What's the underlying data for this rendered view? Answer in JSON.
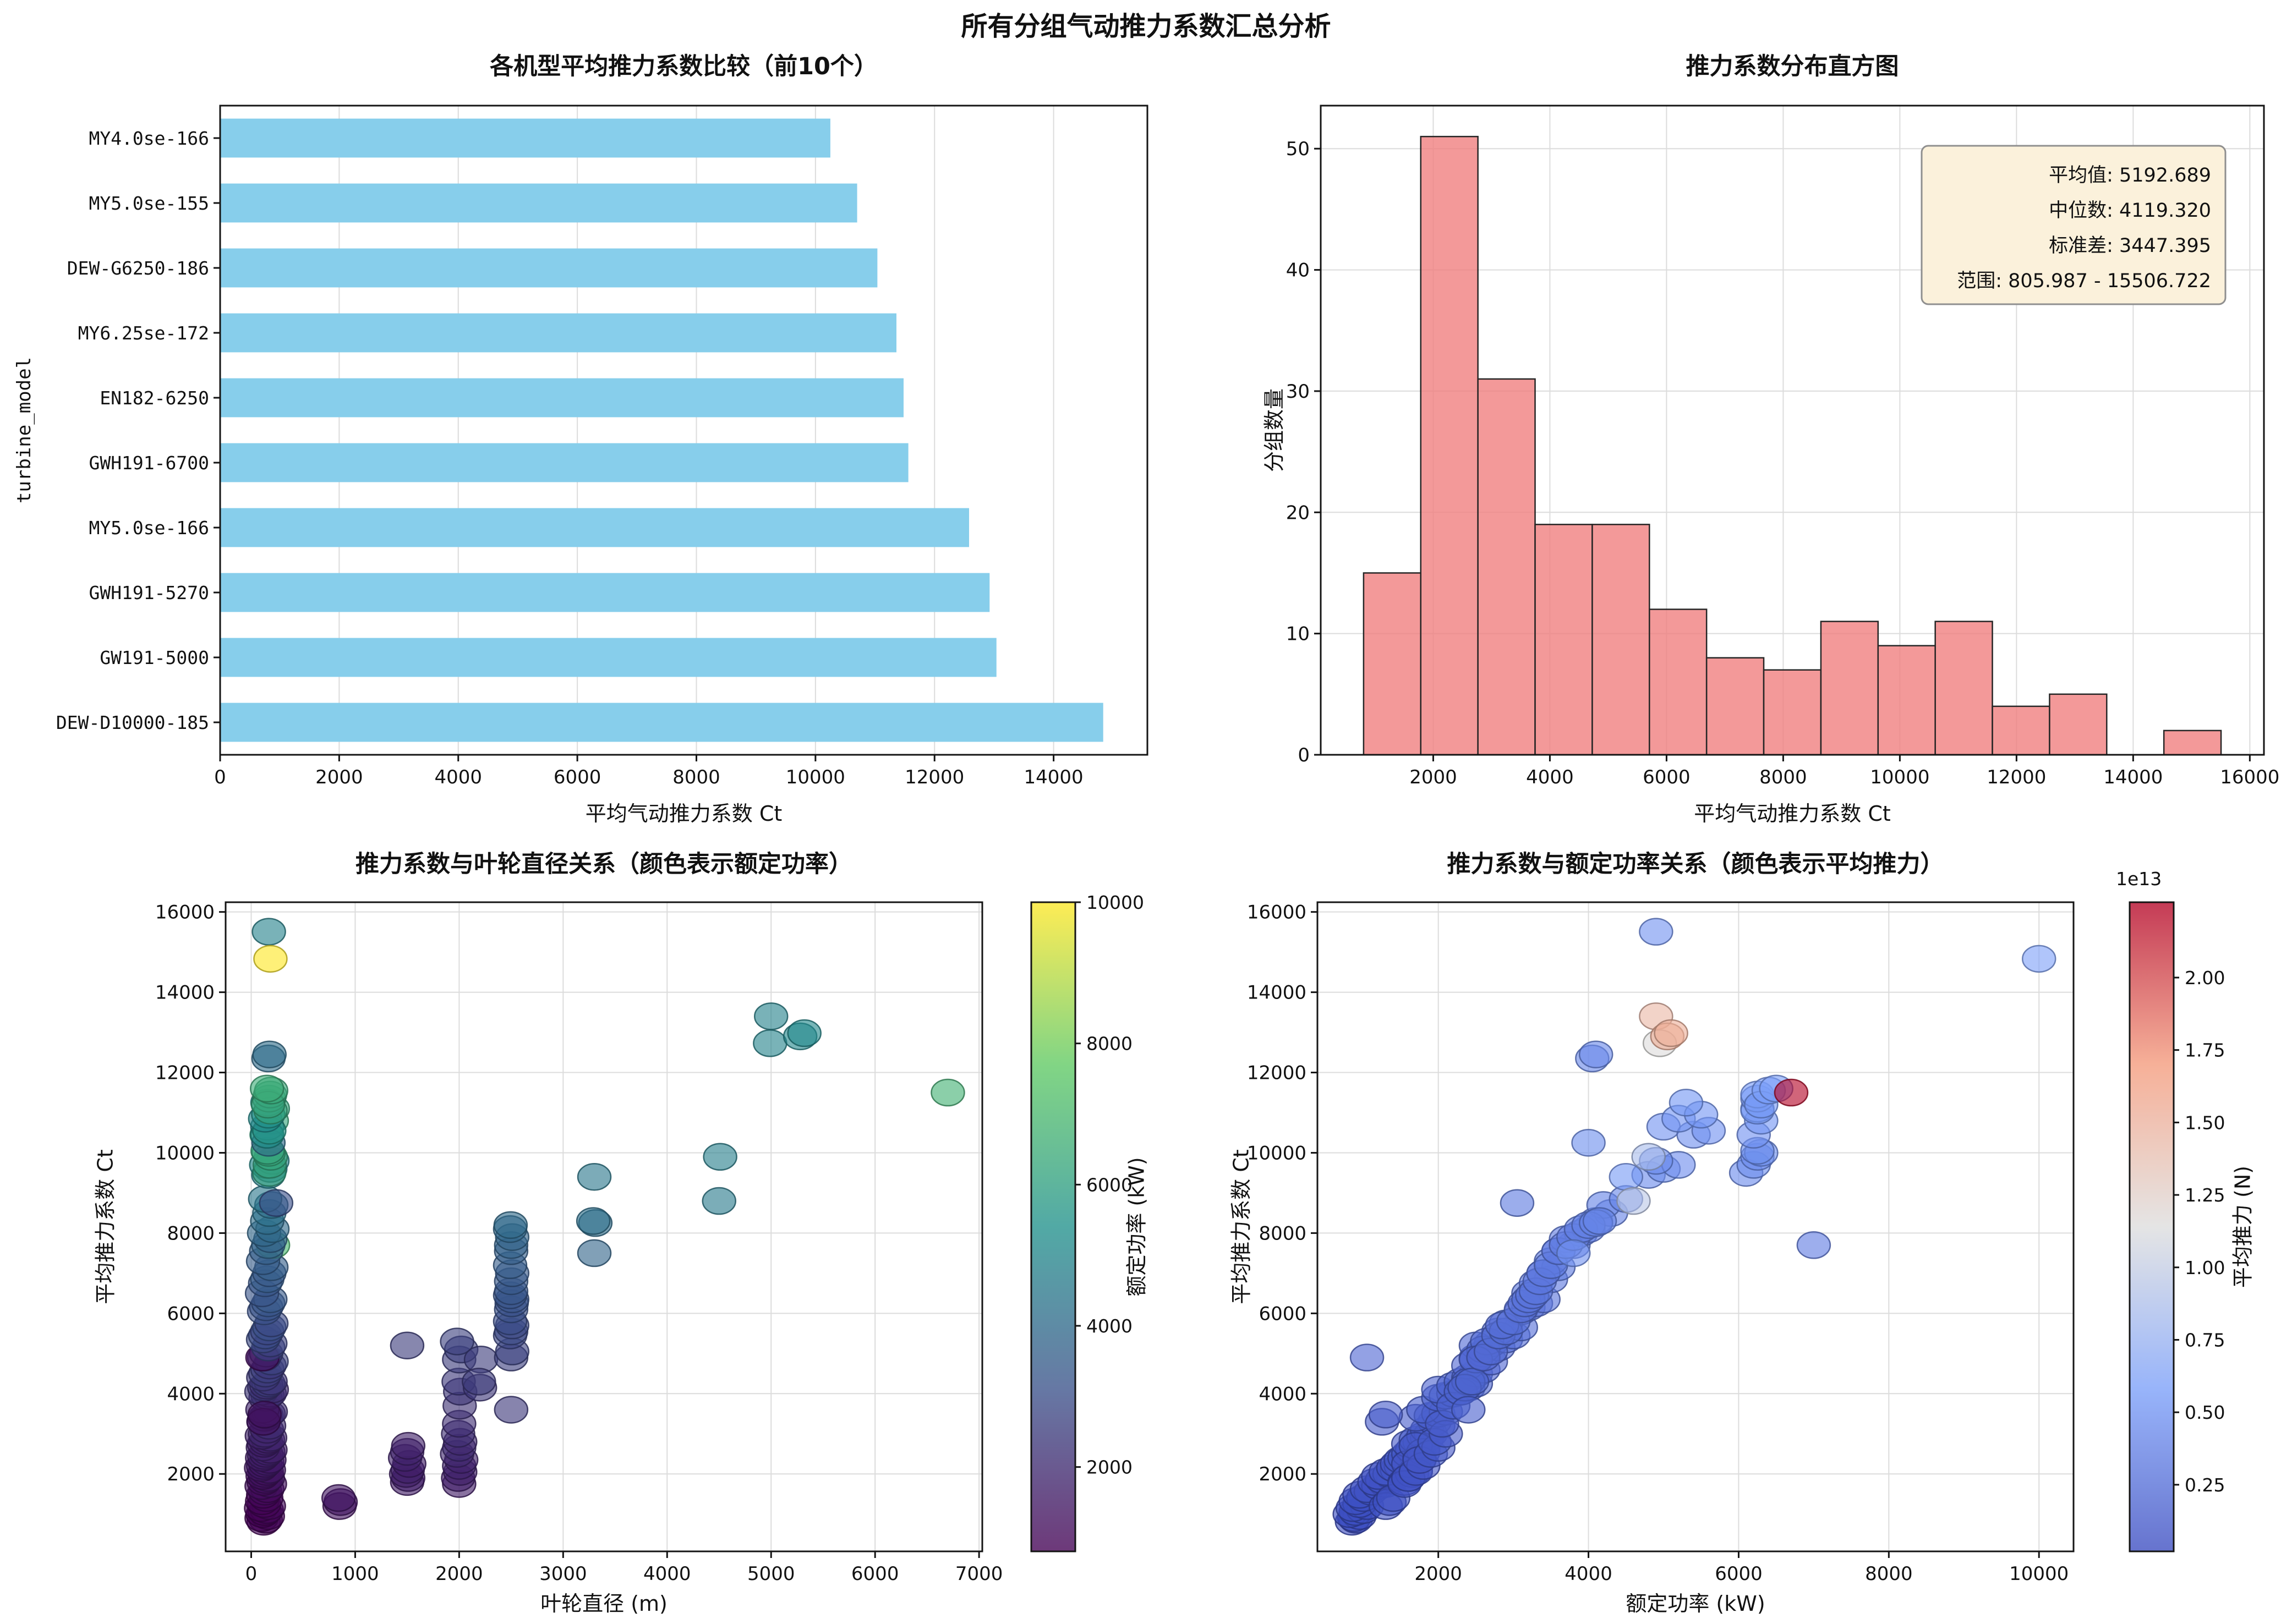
{
  "suptitle": "所有分组气动推力系数汇总分析",
  "record_fields": [
    "rotor_diameter_m",
    "rated_power_kw",
    "mean_ct",
    "mean_thrust_1e13_N"
  ],
  "chart_data": [
    {
      "type": "bar",
      "orientation": "horizontal",
      "title": "各机型平均推力系数比较（前10个）",
      "xlabel": "平均气动推力系数 Ct",
      "ylabel": "turbine_model",
      "categories": [
        "MY4.0se-166",
        "MY5.0se-155",
        "DEW-G6250-186",
        "MY6.25se-172",
        "EN182-6250",
        "GWH191-6700",
        "MY5.0se-166",
        "GWH191-5270",
        "GW191-5000",
        "DEW-D10000-185"
      ],
      "values": [
        10250,
        10700,
        11040,
        11360,
        11480,
        11560,
        12580,
        12925,
        13040,
        14833
      ],
      "bar_color": "#87CEEB",
      "xticks": [
        0,
        2000,
        4000,
        6000,
        8000,
        10000,
        12000,
        14000
      ],
      "xlim": [
        0,
        15575
      ]
    },
    {
      "type": "histogram",
      "title": "推力系数分布直方图",
      "xlabel": "平均气动推力系数 Ct",
      "ylabel": "分组数量",
      "bin_start": 805.987,
      "bin_width": 980.049,
      "counts": [
        15,
        51,
        31,
        19,
        19,
        12,
        8,
        7,
        11,
        9,
        11,
        4,
        5,
        0,
        2
      ],
      "bar_color": "#F08080",
      "edge_color": "#262626",
      "xticks": [
        2000,
        4000,
        6000,
        8000,
        10000,
        12000,
        14000,
        16000
      ],
      "yticks": [
        0,
        10,
        20,
        30,
        40,
        50
      ],
      "xlim": [
        71,
        16242
      ],
      "ylim": [
        0,
        53.55
      ],
      "stats_box": {
        "lines": [
          "平均值: 5192.689",
          "中位数: 4119.320",
          "标准差: 3447.395",
          "范围: 805.987 - 15506.722"
        ],
        "mean": 5192.689,
        "median": 4119.32,
        "std": 3447.395,
        "min": 805.987,
        "max": 15506.722,
        "fill": "#FBF1DB",
        "edge": "#8f8f8f"
      }
    },
    {
      "type": "scatter",
      "title": "推力系数与叶轮直径关系（颜色表示额定功率）",
      "xlabel": "叶轮直径 (m)",
      "ylabel": "平均推力系数 Ct",
      "x_field": "rotor_diameter_m",
      "y_field": "mean_ct",
      "color_field": "rated_power_kw",
      "xticks": [
        0,
        1000,
        2000,
        3000,
        4000,
        5000,
        6000,
        7000
      ],
      "yticks": [
        2000,
        4000,
        6000,
        8000,
        10000,
        12000,
        14000,
        16000
      ],
      "xlim": [
        -246,
        7031
      ],
      "ylim": [
        71,
        16242
      ],
      "colorbar": {
        "label": "额定功率 (kW)",
        "cmap": "viridis",
        "vmin": 805,
        "vmax": 10000,
        "ticks": [
          2000,
          4000,
          6000,
          8000,
          10000
        ],
        "tick_decimals": 0
      }
    },
    {
      "type": "scatter",
      "title": "推力系数与额定功率关系（颜色表示平均推力）",
      "xlabel": "额定功率 (kW)",
      "ylabel": "平均推力系数 Ct",
      "x_field": "rated_power_kw",
      "y_field": "mean_ct",
      "color_field": "mean_thrust_1e13_N",
      "xticks": [
        2000,
        4000,
        6000,
        8000,
        10000
      ],
      "yticks": [
        2000,
        4000,
        6000,
        8000,
        10000,
        12000,
        14000,
        16000
      ],
      "xlim": [
        390,
        10460
      ],
      "ylim": [
        71,
        16242
      ],
      "colorbar": {
        "label": "平均推力 (N)",
        "cmap": "coolwarm",
        "vmin": 0.02,
        "vmax": 2.26,
        "ticks": [
          0.25,
          0.5,
          0.75,
          1.0,
          1.25,
          1.5,
          1.75,
          2.0
        ],
        "tick_decimals": 2,
        "offset_label": "1e13"
      }
    }
  ],
  "records": [
    [
      120,
      850,
      810,
      0.02
    ],
    [
      140,
      900,
      860,
      0.03
    ],
    [
      100,
      880,
      900,
      0.03
    ],
    [
      160,
      950,
      950,
      0.03
    ],
    [
      110,
      820,
      1000,
      0.03
    ],
    [
      130,
      900,
      1050,
      0.04
    ],
    [
      150,
      1000,
      1100,
      0.04
    ],
    [
      95,
      860,
      1150,
      0.04
    ],
    [
      170,
      1050,
      1200,
      0.04
    ],
    [
      125,
      950,
      1250,
      0.05
    ],
    [
      105,
      900,
      1320,
      0.05
    ],
    [
      145,
      1000,
      1400,
      0.05
    ],
    [
      115,
      950,
      1480,
      0.05
    ],
    [
      135,
      1100,
      1560,
      0.06
    ],
    [
      155,
      1050,
      1620,
      0.06
    ],
    [
      100,
      1200,
      1700,
      0.06
    ],
    [
      180,
      1300,
      1750,
      0.06
    ],
    [
      120,
      1150,
      1800,
      0.07
    ],
    [
      140,
      1250,
      1850,
      0.07
    ],
    [
      160,
      1400,
      1900,
      0.07
    ],
    [
      110,
      1200,
      1950,
      0.07
    ],
    [
      130,
      1350,
      2000,
      0.08
    ],
    [
      150,
      1300,
      2050,
      0.08
    ],
    [
      170,
      1450,
      2100,
      0.08
    ],
    [
      95,
      1400,
      2150,
      0.08
    ],
    [
      115,
      1500,
      2200,
      0.09
    ],
    [
      135,
      1450,
      2250,
      0.09
    ],
    [
      155,
      1600,
      2300,
      0.09
    ],
    [
      175,
      1500,
      2350,
      0.1
    ],
    [
      105,
      1550,
      2400,
      0.1
    ],
    [
      125,
      1700,
      2450,
      0.1
    ],
    [
      145,
      1600,
      2500,
      0.1
    ],
    [
      165,
      1750,
      2550,
      0.11
    ],
    [
      185,
      1650,
      2600,
      0.11
    ],
    [
      112,
      1800,
      2660,
      0.11
    ],
    [
      122,
      1600,
      2750,
      0.11
    ],
    [
      142,
      1750,
      2800,
      0.12
    ],
    [
      162,
      1700,
      2850,
      0.12
    ],
    [
      182,
      1850,
      2900,
      0.12
    ],
    [
      102,
      1800,
      2950,
      0.13
    ],
    [
      132,
      1900,
      3000,
      0.13
    ],
    [
      152,
      1850,
      3100,
      0.13
    ],
    [
      172,
      2000,
      3200,
      0.14
    ],
    [
      118,
      1950,
      3300,
      0.14
    ],
    [
      128,
      1700,
      3400,
      0.14
    ],
    [
      148,
      1900,
      3450,
      0.15
    ],
    [
      168,
      2000,
      3500,
      0.15
    ],
    [
      188,
      2100,
      3550,
      0.15
    ],
    [
      108,
      1800,
      3600,
      0.16
    ],
    [
      138,
      2000,
      3900,
      0.16
    ],
    [
      158,
      2100,
      3950,
      0.17
    ],
    [
      178,
      2200,
      4000,
      0.17
    ],
    [
      98,
      2300,
      4050,
      0.17
    ],
    [
      198,
      2000,
      4100,
      0.18
    ],
    [
      126,
      2400,
      4150,
      0.18
    ],
    [
      146,
      2200,
      4200,
      0.18
    ],
    [
      166,
      2500,
      4250,
      0.19
    ],
    [
      186,
      2300,
      4300,
      0.19
    ],
    [
      116,
      2400,
      4400,
      0.2
    ],
    [
      136,
      2500,
      4500,
      0.2
    ],
    [
      156,
      2600,
      4600,
      0.2
    ],
    [
      176,
      2400,
      4700,
      0.21
    ],
    [
      196,
      2700,
      4800,
      0.21
    ],
    [
      124,
      2500,
      4900,
      0.22
    ],
    [
      144,
      2600,
      5000,
      0.22
    ],
    [
      108,
      1050,
      4900,
      0.21
    ],
    [
      164,
      2800,
      5150,
      0.23
    ],
    [
      184,
      2700,
      5250,
      0.23
    ],
    [
      114,
      2900,
      5350,
      0.24
    ],
    [
      134,
      3000,
      5450,
      0.24
    ],
    [
      154,
      2800,
      5550,
      0.25
    ],
    [
      174,
      3100,
      5650,
      0.26
    ],
    [
      194,
      2900,
      5750,
      0.26
    ],
    [
      124,
      3100,
      6050,
      0.27
    ],
    [
      144,
      3200,
      6150,
      0.28
    ],
    [
      164,
      3300,
      6250,
      0.28
    ],
    [
      184,
      3400,
      6350,
      0.29
    ],
    [
      104,
      3200,
      6500,
      0.3
    ],
    [
      134,
      3300,
      6750,
      0.31
    ],
    [
      154,
      3500,
      6850,
      0.31
    ],
    [
      174,
      3400,
      7000,
      0.32
    ],
    [
      194,
      3600,
      7150,
      0.33
    ],
    [
      114,
      3500,
      7300,
      0.34
    ],
    [
      210,
      7000,
      7700,
      0.35
    ],
    [
      144,
      3600,
      7550,
      0.34
    ],
    [
      164,
      3800,
      7700,
      0.35
    ],
    [
      184,
      3700,
      7850,
      0.36
    ],
    [
      124,
      3900,
      8000,
      0.37
    ],
    [
      204,
      4000,
      8100,
      0.38
    ],
    [
      154,
      4100,
      8300,
      0.38
    ],
    [
      174,
      4300,
      8500,
      0.39
    ],
    [
      194,
      4200,
      8700,
      0.4
    ],
    [
      134,
      4500,
      8850,
      0.41
    ],
    [
      240,
      3050,
      8750,
      0.33
    ],
    [
      164,
      4800,
      9450,
      0.44
    ],
    [
      184,
      5000,
      9600,
      0.45
    ],
    [
      144,
      5200,
      9700,
      0.46
    ],
    [
      204,
      4900,
      9800,
      0.46
    ],
    [
      174,
      6100,
      9500,
      0.44
    ],
    [
      178,
      6200,
      9700,
      0.45
    ],
    [
      188,
      6250,
      9900,
      0.46
    ],
    [
      168,
      6300,
      10000,
      0.47
    ],
    [
      158,
      6250,
      10050,
      0.47
    ],
    [
      148,
      6200,
      10450,
      0.49
    ],
    [
      198,
      6300,
      10800,
      0.52
    ],
    [
      208,
      6250,
      11100,
      0.54
    ],
    [
      166,
      4000,
      10250,
      0.47
    ],
    [
      155,
      5000,
      10650,
      0.5
    ],
    [
      154,
      5400,
      10450,
      0.48
    ],
    [
      174,
      5600,
      10550,
      0.49
    ],
    [
      134,
      5200,
      10850,
      0.51
    ],
    [
      164,
      5500,
      10950,
      0.52
    ],
    [
      156,
      5300,
      11250,
      0.53
    ],
    [
      186,
      6250,
      11050,
      0.53
    ],
    [
      172,
      6250,
      11350,
      0.55
    ],
    [
      182,
      6250,
      11450,
      0.56
    ],
    [
      162,
      6300,
      11200,
      0.54
    ],
    [
      192,
      6400,
      11550,
      0.57
    ],
    [
      152,
      6500,
      11600,
      0.57
    ],
    [
      166,
      4050,
      12350,
      0.42
    ],
    [
      176,
      4100,
      12450,
      0.43
    ],
    [
      170,
      4900,
      15507,
      0.5
    ],
    [
      185,
      10000,
      14833,
      0.6
    ],
    [
      850,
      1300,
      1200,
      0.05
    ],
    [
      860,
      1350,
      1300,
      0.05
    ],
    [
      840,
      1400,
      1400,
      0.06
    ],
    [
      1500,
      1550,
      1800,
      0.07
    ],
    [
      1510,
      1600,
      1900,
      0.07
    ],
    [
      1490,
      1650,
      2000,
      0.08
    ],
    [
      1505,
      1700,
      2100,
      0.08
    ],
    [
      1520,
      1600,
      2250,
      0.09
    ],
    [
      1480,
      1750,
      2400,
      0.1
    ],
    [
      1500,
      1800,
      2550,
      0.1
    ],
    [
      1510,
      1700,
      2700,
      0.11
    ],
    [
      1500,
      2500,
      5200,
      0.23
    ],
    [
      2000,
      1550,
      1750,
      0.07
    ],
    [
      1990,
      1600,
      1900,
      0.07
    ],
    [
      2010,
      1700,
      2050,
      0.08
    ],
    [
      2000,
      1800,
      2200,
      0.09
    ],
    [
      2020,
      1750,
      2350,
      0.09
    ],
    [
      1980,
      1900,
      2500,
      0.1
    ],
    [
      2000,
      2000,
      2650,
      0.11
    ],
    [
      2010,
      1950,
      2800,
      0.12
    ],
    [
      1990,
      2100,
      3000,
      0.13
    ],
    [
      2000,
      2050,
      3250,
      0.14
    ],
    [
      2005,
      2200,
      3700,
      0.16
    ],
    [
      2010,
      2300,
      4050,
      0.17
    ],
    [
      1995,
      2400,
      4300,
      0.19
    ],
    [
      2000,
      2500,
      4850,
      0.21
    ],
    [
      2020,
      2600,
      5100,
      0.22
    ],
    [
      1980,
      2650,
      5300,
      0.23
    ],
    [
      2200,
      2350,
      4150,
      0.18
    ],
    [
      2210,
      2500,
      4850,
      0.21
    ],
    [
      2190,
      2450,
      4300,
      0.19
    ],
    [
      2500,
      2400,
      3600,
      0.16
    ],
    [
      2500,
      2600,
      4900,
      0.21
    ],
    [
      2510,
      2700,
      5050,
      0.22
    ],
    [
      2490,
      2800,
      5450,
      0.24
    ],
    [
      2500,
      2900,
      5550,
      0.25
    ],
    [
      2510,
      2850,
      5700,
      0.25
    ],
    [
      2490,
      3000,
      5800,
      0.26
    ],
    [
      2500,
      3100,
      6100,
      0.27
    ],
    [
      2505,
      3150,
      6250,
      0.28
    ],
    [
      2510,
      3200,
      6350,
      0.29
    ],
    [
      2490,
      3250,
      6450,
      0.29
    ],
    [
      2500,
      3300,
      6550,
      0.3
    ],
    [
      2500,
      3350,
      6800,
      0.31
    ],
    [
      2510,
      3400,
      7000,
      0.32
    ],
    [
      2490,
      3500,
      7200,
      0.33
    ],
    [
      2500,
      3600,
      7550,
      0.34
    ],
    [
      2500,
      3700,
      7700,
      0.35
    ],
    [
      2510,
      3800,
      7900,
      0.36
    ],
    [
      2490,
      3900,
      8100,
      0.37
    ],
    [
      2495,
      4000,
      8200,
      0.38
    ],
    [
      3300,
      3800,
      7500,
      0.5
    ],
    [
      3310,
      4100,
      8250,
      0.4
    ],
    [
      3290,
      4150,
      8300,
      0.4
    ],
    [
      3300,
      4500,
      9400,
      0.55
    ],
    [
      4500,
      4600,
      8800,
      0.95
    ],
    [
      4510,
      4800,
      9900,
      0.85
    ],
    [
      5000,
      4900,
      13400,
      1.45
    ],
    [
      4990,
      4950,
      12730,
      1.15
    ],
    [
      5280,
      5050,
      12900,
      1.55
    ],
    [
      5320,
      5100,
      12980,
      1.52
    ],
    [
      6700,
      6700,
      11500,
      2.25
    ],
    [
      119,
      1250,
      3300,
      0.14
    ],
    [
      129,
      1300,
      3480,
      0.14
    ]
  ]
}
